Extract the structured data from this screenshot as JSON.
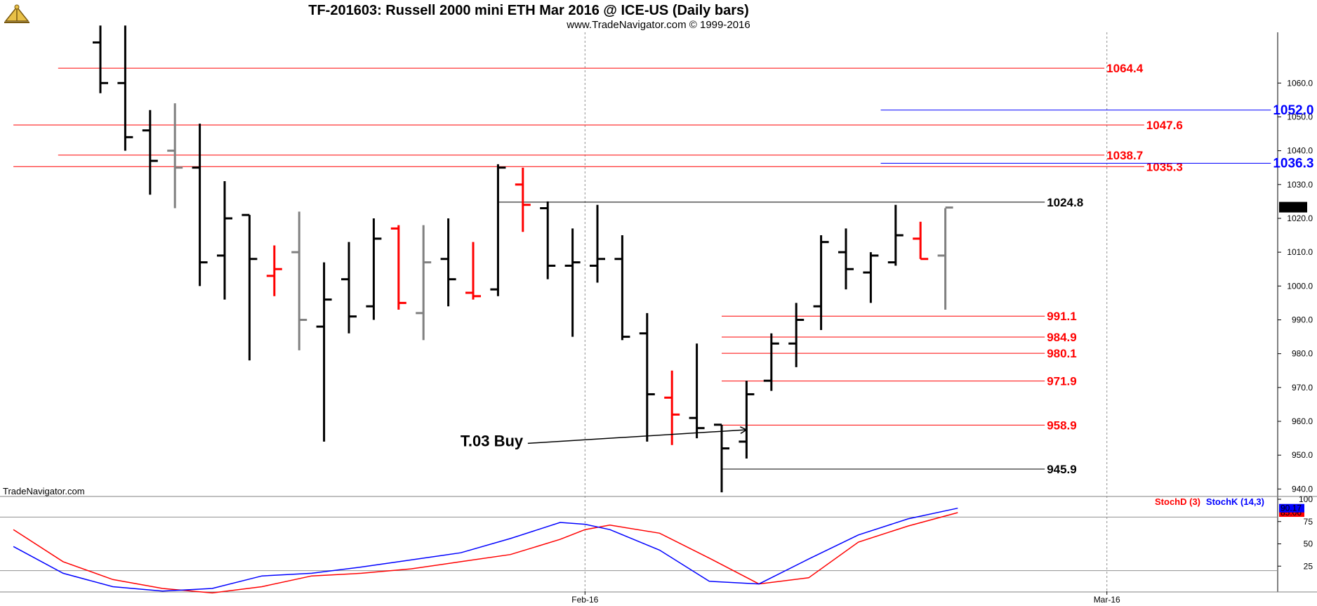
{
  "header": {
    "title": "TF-201603:  Russell 2000 mini ETH Mar 2016 @ ICE-US  (Daily bars)",
    "subtitle": "www.TradeNavigator.com © 1999-2016"
  },
  "watermark": "TradeNavigator.com",
  "logo_icon": "sextant-icon",
  "chart_data": [
    {
      "type": "ohlc",
      "ylim": [
        938,
        1075
      ],
      "y_ticks": [
        940,
        950,
        960,
        970,
        980,
        990,
        1000,
        1010,
        1020,
        1030,
        1040,
        1050,
        1060
      ],
      "x_ticks": [
        {
          "label": "Feb-16",
          "index": 19.5
        },
        {
          "label": "Mar-16",
          "index": 40.5
        }
      ],
      "last_price_label": "1023.2",
      "colors": {
        "up": "#000000",
        "down": "#ff0000",
        "neutral": "#808080"
      },
      "bars": [
        {
          "o": 1072,
          "h": 1077,
          "l": 1057,
          "c": 1060,
          "color": "#000000"
        },
        {
          "o": 1060,
          "h": 1077,
          "l": 1040,
          "c": 1044,
          "color": "#000000"
        },
        {
          "o": 1046,
          "h": 1052,
          "l": 1027,
          "c": 1037,
          "color": "#000000"
        },
        {
          "o": 1040,
          "h": 1054,
          "l": 1023,
          "c": 1035,
          "color": "#808080"
        },
        {
          "o": 1035,
          "h": 1048,
          "l": 1000,
          "c": 1007,
          "color": "#000000"
        },
        {
          "o": 1009,
          "h": 1031,
          "l": 996,
          "c": 1020,
          "color": "#000000"
        },
        {
          "o": 1021,
          "h": 1021,
          "l": 978,
          "c": 1008,
          "color": "#000000"
        },
        {
          "o": 1003,
          "h": 1012,
          "l": 997,
          "c": 1005,
          "color": "#ff0000"
        },
        {
          "o": 1010,
          "h": 1022,
          "l": 981,
          "c": 990,
          "color": "#808080"
        },
        {
          "o": 988,
          "h": 1007,
          "l": 954,
          "c": 996,
          "color": "#000000"
        },
        {
          "o": 1002,
          "h": 1013,
          "l": 986,
          "c": 991,
          "color": "#000000"
        },
        {
          "o": 994,
          "h": 1020,
          "l": 990,
          "c": 1014,
          "color": "#000000"
        },
        {
          "o": 1017,
          "h": 1018,
          "l": 993,
          "c": 995,
          "color": "#ff0000"
        },
        {
          "o": 992,
          "h": 1018,
          "l": 984,
          "c": 1007,
          "color": "#808080"
        },
        {
          "o": 1008,
          "h": 1020,
          "l": 994,
          "c": 1002,
          "color": "#000000"
        },
        {
          "o": 998,
          "h": 1013,
          "l": 996,
          "c": 997,
          "color": "#ff0000"
        },
        {
          "o": 999,
          "h": 1036,
          "l": 997,
          "c": 1035,
          "color": "#000000"
        },
        {
          "o": 1030,
          "h": 1035,
          "l": 1016,
          "c": 1024,
          "color": "#ff0000"
        },
        {
          "o": 1023,
          "h": 1025,
          "l": 1002,
          "c": 1006,
          "color": "#000000"
        },
        {
          "o": 1006,
          "h": 1017,
          "l": 985,
          "c": 1007,
          "color": "#000000"
        },
        {
          "o": 1006,
          "h": 1024,
          "l": 1001,
          "c": 1008,
          "color": "#000000"
        },
        {
          "o": 1008,
          "h": 1015,
          "l": 984,
          "c": 985,
          "color": "#000000"
        },
        {
          "o": 986,
          "h": 992,
          "l": 954,
          "c": 968,
          "color": "#000000"
        },
        {
          "o": 967,
          "h": 975,
          "l": 953,
          "c": 962,
          "color": "#ff0000"
        },
        {
          "o": 961,
          "h": 983,
          "l": 955,
          "c": 958,
          "color": "#000000"
        },
        {
          "o": 959,
          "h": 959,
          "l": 939,
          "c": 952,
          "color": "#000000"
        },
        {
          "o": 954,
          "h": 972,
          "l": 949,
          "c": 968,
          "color": "#000000"
        },
        {
          "o": 972,
          "h": 986,
          "l": 969,
          "c": 983,
          "color": "#000000"
        },
        {
          "o": 983,
          "h": 995,
          "l": 976,
          "c": 990,
          "color": "#000000"
        },
        {
          "o": 994,
          "h": 1015,
          "l": 987,
          "c": 1013,
          "color": "#000000"
        },
        {
          "o": 1010,
          "h": 1017,
          "l": 999,
          "c": 1005,
          "color": "#000000"
        },
        {
          "o": 1004,
          "h": 1010,
          "l": 995,
          "c": 1009,
          "color": "#000000"
        },
        {
          "o": 1007,
          "h": 1024,
          "l": 1006,
          "c": 1015,
          "color": "#000000"
        },
        {
          "o": 1014,
          "h": 1019,
          "l": 1008,
          "c": 1008,
          "color": "#ff0000"
        },
        {
          "o": 1009,
          "h": 1023,
          "l": 993,
          "c": 1023.2,
          "color": "#808080"
        }
      ],
      "levels": [
        {
          "label": "1064.4",
          "value": 1064.4,
          "from": -1.7,
          "to": 40.4,
          "color": "#ff0000"
        },
        {
          "label": "1047.6",
          "value": 1047.6,
          "from": -3.5,
          "to": 42.0,
          "color": "#ff0000"
        },
        {
          "label": "1038.7",
          "value": 1038.7,
          "from": -1.7,
          "to": 40.4,
          "color": "#ff0000"
        },
        {
          "label": "1035.3",
          "value": 1035.3,
          "from": -3.5,
          "to": 42.0,
          "color": "#ff0000"
        },
        {
          "label": "1052.0",
          "value": 1052.0,
          "from": 31.4,
          "to": 47.1,
          "color": "#0000ff"
        },
        {
          "label": "1036.3",
          "value": 1036.3,
          "from": 31.4,
          "to": 47.1,
          "color": "#0000ff"
        },
        {
          "label": "1024.8",
          "value": 1024.8,
          "from": 16.0,
          "to": 38.0,
          "color": "#000000"
        },
        {
          "label": "991.1",
          "value": 991.1,
          "from": 25.0,
          "to": 38.0,
          "color": "#ff0000"
        },
        {
          "label": "984.9",
          "value": 984.9,
          "from": 25.0,
          "to": 38.0,
          "color": "#ff0000"
        },
        {
          "label": "980.1",
          "value": 980.1,
          "from": 25.0,
          "to": 38.0,
          "color": "#ff0000"
        },
        {
          "label": "971.9",
          "value": 971.9,
          "from": 25.0,
          "to": 38.0,
          "color": "#ff0000"
        },
        {
          "label": "958.9",
          "value": 958.9,
          "from": 25.0,
          "to": 38.0,
          "color": "#ff0000"
        },
        {
          "label": "945.9",
          "value": 945.9,
          "from": 25.0,
          "to": 38.0,
          "color": "#000000"
        }
      ],
      "annotation": {
        "label": "T.03 Buy",
        "start": {
          "index": 17.2,
          "value": 953.5
        },
        "end": {
          "index": 26.0,
          "value": 957.5
        }
      }
    },
    {
      "type": "line",
      "ylim": [
        0,
        100
      ],
      "y_ticks": [
        25,
        50,
        75,
        100
      ],
      "hlines": [
        20,
        80
      ],
      "series": [
        {
          "name": "StochD (3)",
          "color": "#ff0000",
          "last_label": "85.06",
          "x": [
            -3.5,
            -1.5,
            0.5,
            2.5,
            4.5,
            6.5,
            8.5,
            10.5,
            12.5,
            14.5,
            16.5,
            18.5,
            19.5,
            20.5,
            22.5,
            24.5,
            26.5,
            28.5,
            30.5,
            32.5,
            34.5
          ],
          "values": [
            66,
            30,
            10,
            0,
            -5,
            2,
            14,
            17,
            22,
            30,
            38,
            55,
            66,
            71,
            62,
            34,
            5,
            12,
            52,
            70,
            85
          ]
        },
        {
          "name": "StochK (14,3)",
          "color": "#0000ff",
          "last_label": "90.17",
          "x": [
            -3.5,
            -1.5,
            0.5,
            2.5,
            4.5,
            6.5,
            8.5,
            10.5,
            12.5,
            14.5,
            16.5,
            18.5,
            19.5,
            20.5,
            22.5,
            24.5,
            26.5,
            28.5,
            30.5,
            32.5,
            34.5
          ],
          "values": [
            47,
            17,
            2,
            -3,
            0,
            14,
            17,
            24,
            32,
            40,
            56,
            74,
            72,
            66,
            43,
            8,
            5,
            33,
            60,
            78,
            90
          ]
        }
      ]
    }
  ]
}
